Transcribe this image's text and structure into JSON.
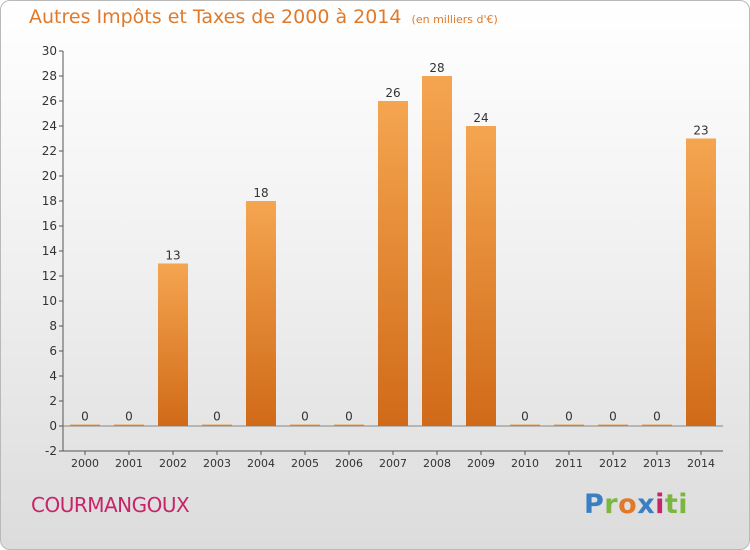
{
  "chart_data": {
    "type": "bar",
    "title": "Autres Impôts et Taxes de 2000 à 2014",
    "subtitle": "(en milliers d'€)",
    "categories": [
      "2000",
      "2001",
      "2002",
      "2003",
      "2004",
      "2005",
      "2006",
      "2007",
      "2008",
      "2009",
      "2010",
      "2011",
      "2012",
      "2013",
      "2014"
    ],
    "values": [
      0,
      0,
      13,
      0,
      18,
      0,
      0,
      26,
      28,
      24,
      0,
      0,
      0,
      0,
      23
    ],
    "ylim": [
      -2,
      30
    ],
    "yticks": [
      -2,
      0,
      2,
      4,
      6,
      8,
      10,
      12,
      14,
      16,
      18,
      20,
      22,
      24,
      26,
      28,
      30
    ],
    "grid": false,
    "bar_color_top": "#f5a550",
    "bar_color_bottom": "#d06a18"
  },
  "footer": {
    "town": "COURMANGOUX",
    "logo": "Proxiti",
    "logo_letters": [
      "P",
      "r",
      "o",
      "x",
      "i",
      "ti"
    ]
  }
}
